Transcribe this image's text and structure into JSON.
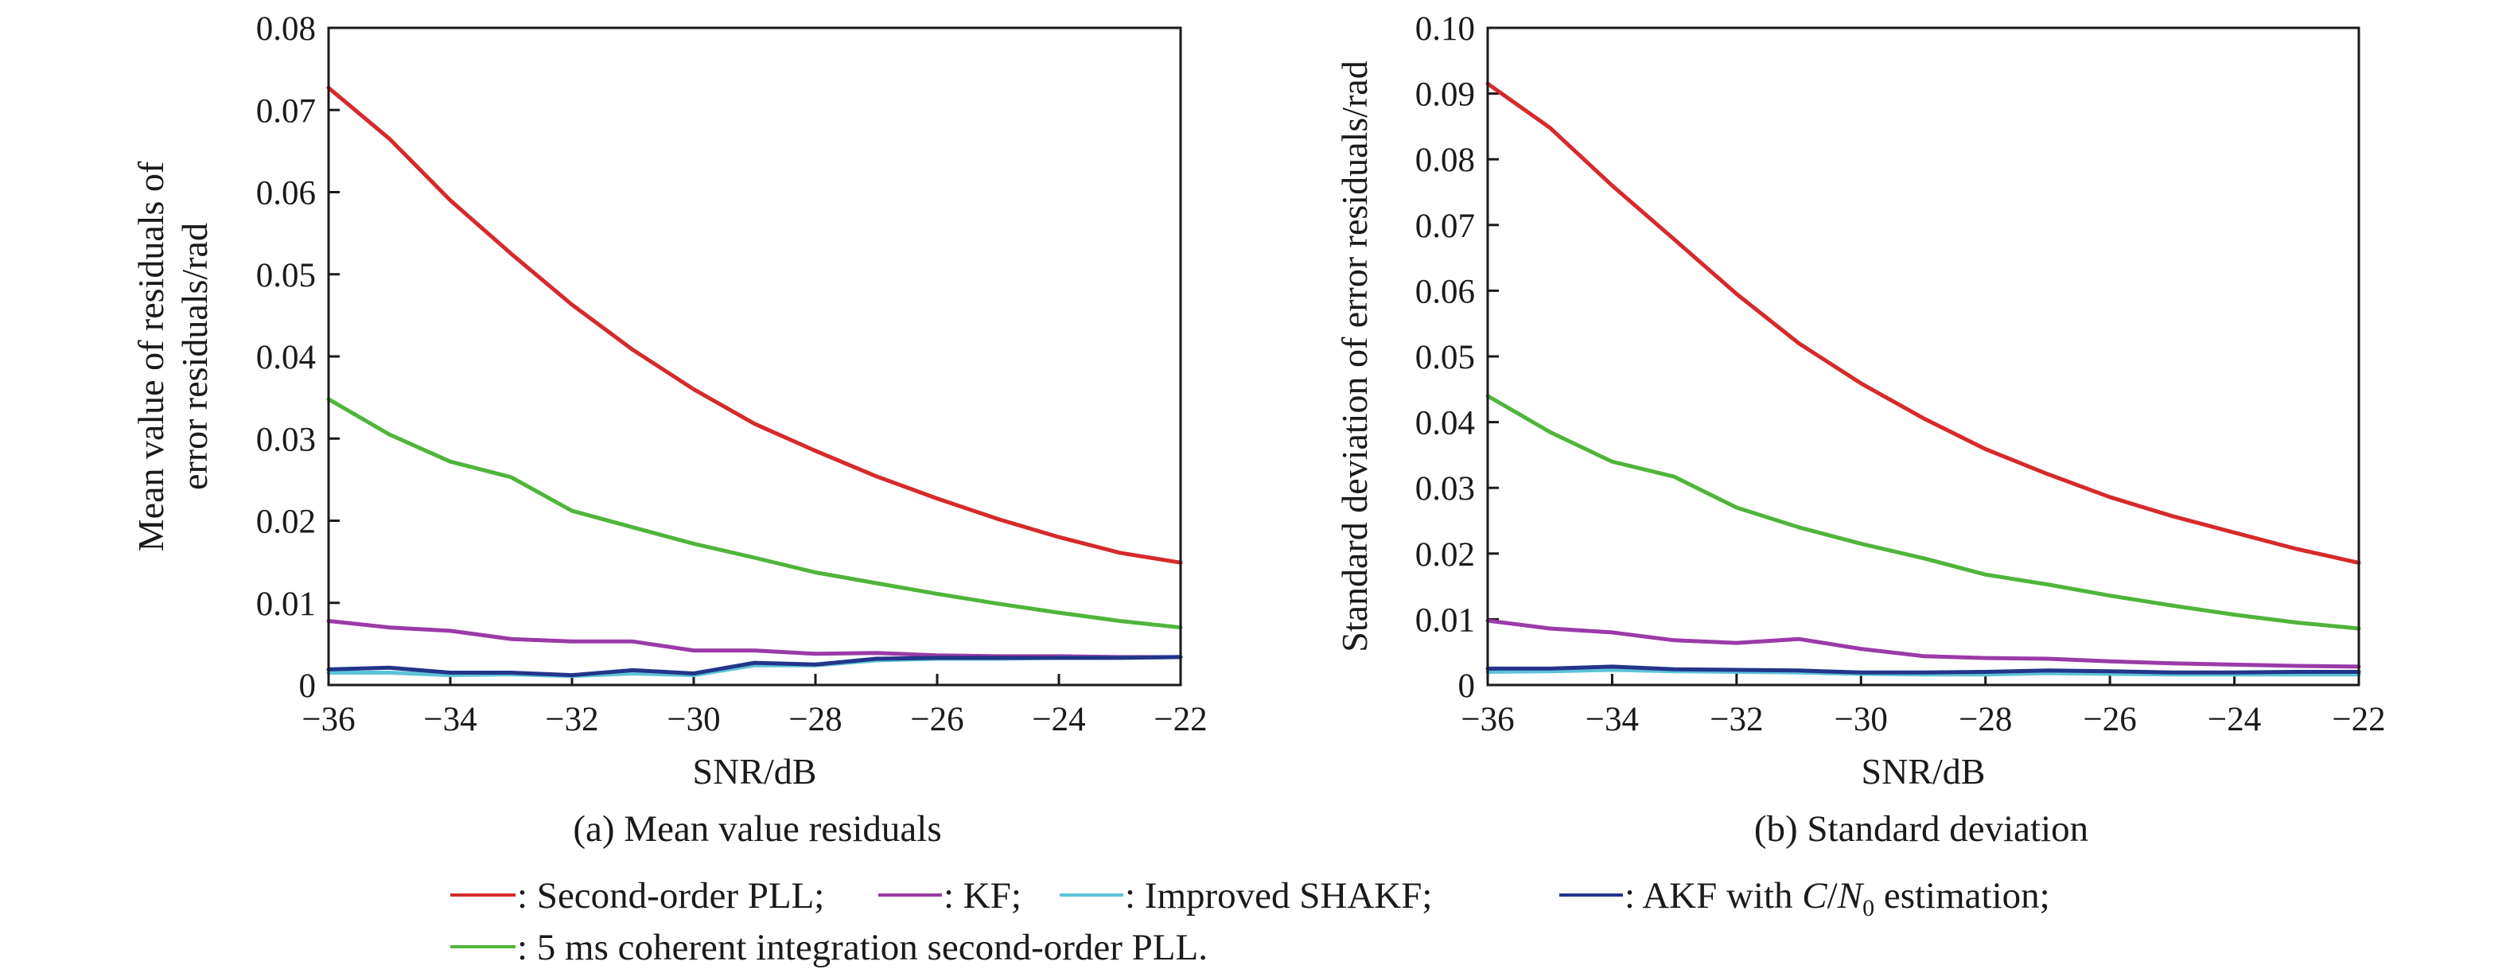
{
  "chart_data": [
    {
      "type": "line",
      "caption": "(a) Mean value residuals",
      "xlabel": "SNR/dB",
      "ylabel_lines": [
        "Mean value of residuals of",
        "error residuals/rad"
      ],
      "xlim": [
        -36,
        -22
      ],
      "ylim": [
        0,
        0.08
      ],
      "xticks": [
        -36,
        -34,
        -32,
        -30,
        -28,
        -26,
        -24,
        -22
      ],
      "xtick_labels": [
        "−36",
        "−34",
        "−32",
        "−30",
        "−28",
        "−26",
        "−24",
        "−22"
      ],
      "yticks": [
        0,
        0.01,
        0.02,
        0.03,
        0.04,
        0.05,
        0.06,
        0.07,
        0.08
      ],
      "ytick_labels": [
        "0",
        "0.01",
        "0.02",
        "0.03",
        "0.04",
        "0.05",
        "0.06",
        "0.07",
        "0.08"
      ],
      "x": [
        -36,
        -35,
        -34,
        -33,
        -32,
        -31,
        -30,
        -29,
        -28,
        -27,
        -26,
        -25,
        -24,
        -23,
        -22
      ],
      "series": [
        {
          "key": "pll",
          "color": "#d62a2a",
          "values": [
            0.0727,
            0.0665,
            0.059,
            0.0525,
            0.0463,
            0.0408,
            0.036,
            0.0318,
            0.0285,
            0.0254,
            0.0227,
            0.0202,
            0.018,
            0.0161,
            0.0149
          ]
        },
        {
          "key": "coherent",
          "color": "#4fb53a",
          "values": [
            0.0348,
            0.0305,
            0.0272,
            0.0253,
            0.0212,
            0.0192,
            0.0172,
            0.0155,
            0.0137,
            0.0124,
            0.0111,
            0.0099,
            0.0088,
            0.0078,
            0.007
          ]
        },
        {
          "key": "kf",
          "color": "#9b3aa8",
          "values": [
            0.0078,
            0.007,
            0.0066,
            0.0056,
            0.0053,
            0.0053,
            0.0042,
            0.0042,
            0.0038,
            0.0039,
            0.0036,
            0.0035,
            0.0035,
            0.0034,
            0.0034
          ]
        },
        {
          "key": "shakf",
          "color": "#5cc4d8",
          "values": [
            0.0015,
            0.0015,
            0.0012,
            0.0013,
            0.0011,
            0.0014,
            0.0012,
            0.0024,
            0.0024,
            0.003,
            0.0032,
            0.0032,
            0.0033,
            0.0033,
            0.0034
          ]
        },
        {
          "key": "akf",
          "color": "#23358a",
          "values": [
            0.0019,
            0.0021,
            0.0015,
            0.0015,
            0.0012,
            0.0018,
            0.0014,
            0.0027,
            0.0025,
            0.0032,
            0.0033,
            0.0033,
            0.0033,
            0.0033,
            0.0034
          ]
        }
      ]
    },
    {
      "type": "line",
      "caption": "(b) Standard deviation",
      "xlabel": "SNR/dB",
      "ylabel_lines": [
        "Standard deviation of error residuals/rad"
      ],
      "xlim": [
        -36,
        -22
      ],
      "ylim": [
        0,
        0.1
      ],
      "xticks": [
        -36,
        -34,
        -32,
        -30,
        -28,
        -26,
        -24,
        -22
      ],
      "xtick_labels": [
        "−36",
        "−34",
        "−32",
        "−30",
        "−28",
        "−26",
        "−24",
        "−22"
      ],
      "yticks": [
        0,
        0.01,
        0.02,
        0.03,
        0.04,
        0.05,
        0.06,
        0.07,
        0.08,
        0.09,
        0.1
      ],
      "ytick_labels": [
        "0",
        "0.01",
        "0.02",
        "0.03",
        "0.04",
        "0.05",
        "0.06",
        "0.07",
        "0.08",
        "0.09",
        "0.10"
      ],
      "x": [
        -36,
        -35,
        -34,
        -33,
        -32,
        -31,
        -30,
        -29,
        -28,
        -27,
        -26,
        -25,
        -24,
        -23,
        -22
      ],
      "series": [
        {
          "key": "pll",
          "color": "#d62a2a",
          "values": [
            0.0915,
            0.0848,
            0.076,
            0.0678,
            0.0595,
            0.052,
            0.0459,
            0.0406,
            0.0359,
            0.0321,
            0.0286,
            0.0257,
            0.0232,
            0.0207,
            0.0186
          ]
        },
        {
          "key": "coherent",
          "color": "#4fb53a",
          "values": [
            0.044,
            0.0385,
            0.034,
            0.0317,
            0.027,
            0.024,
            0.0215,
            0.0193,
            0.0168,
            0.0153,
            0.0136,
            0.0121,
            0.0107,
            0.0095,
            0.0086
          ]
        },
        {
          "key": "kf",
          "color": "#9b3aa8",
          "values": [
            0.0098,
            0.0086,
            0.008,
            0.0068,
            0.0064,
            0.007,
            0.0055,
            0.0044,
            0.0041,
            0.004,
            0.0036,
            0.0033,
            0.0031,
            0.0029,
            0.0028
          ]
        },
        {
          "key": "shakf",
          "color": "#5cc4d8",
          "values": [
            0.002,
            0.0021,
            0.0023,
            0.0021,
            0.002,
            0.0019,
            0.0017,
            0.0016,
            0.0016,
            0.0018,
            0.0017,
            0.0016,
            0.0016,
            0.0016,
            0.0016
          ]
        },
        {
          "key": "akf",
          "color": "#23358a",
          "values": [
            0.0025,
            0.0025,
            0.0028,
            0.0024,
            0.0023,
            0.0022,
            0.0019,
            0.0019,
            0.002,
            0.0022,
            0.0021,
            0.0019,
            0.0019,
            0.002,
            0.002
          ]
        }
      ]
    }
  ],
  "legend": {
    "items": [
      {
        "key": "pll",
        "color": "#d62a2a",
        "text": ": Second-order PLL;"
      },
      {
        "key": "kf",
        "color": "#9b3aa8",
        "text": ": KF;"
      },
      {
        "key": "shakf",
        "color": "#5cc4d8",
        "text": ": Improved SHAKF;"
      },
      {
        "key": "akf",
        "color": "#23358a",
        "text_before": ": AKF with ",
        "text_cn": "C",
        "text_slash": "/",
        "text_n": "N",
        "text_sub": "0",
        "text_after": " estimation;"
      },
      {
        "key": "coherent",
        "color": "#4fb53a",
        "text": ": 5 ms coherent integration second-order PLL."
      }
    ]
  }
}
